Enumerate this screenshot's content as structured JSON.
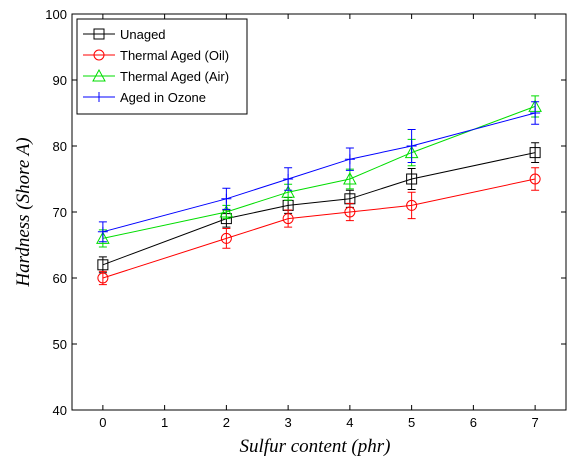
{
  "chart_data": {
    "type": "line",
    "title": "",
    "xlabel": "Sulfur content (phr)",
    "ylabel": "Hardness (Shore A)",
    "xlim": [
      -0.5,
      7.5
    ],
    "ylim": [
      40,
      100
    ],
    "xticks": [
      0,
      1,
      2,
      3,
      4,
      5,
      6,
      7
    ],
    "yticks": [
      40,
      50,
      60,
      70,
      80,
      90,
      100
    ],
    "grid": false,
    "legend_position": "top-left",
    "x": [
      0,
      2,
      3,
      4,
      5,
      7
    ],
    "series": [
      {
        "name": "Unaged",
        "color": "#000000",
        "marker": "square",
        "values": [
          62,
          69,
          71,
          72,
          75,
          79
        ],
        "errors": [
          1.2,
          1.3,
          1.2,
          1.3,
          1.6,
          1.5
        ]
      },
      {
        "name": "Thermal Aged (Oil)",
        "color": "#ff0000",
        "marker": "circle",
        "values": [
          60,
          66,
          69,
          70,
          71,
          75
        ],
        "errors": [
          1.0,
          1.5,
          1.3,
          1.3,
          2.0,
          1.7
        ]
      },
      {
        "name": "Thermal Aged (Air)",
        "color": "#00dd00",
        "marker": "triangle",
        "values": [
          66,
          70,
          73,
          75,
          79,
          86
        ],
        "errors": [
          1.3,
          1.0,
          1.2,
          1.5,
          2.0,
          1.6
        ]
      },
      {
        "name": "Aged in Ozone",
        "color": "#0000ff",
        "marker": "plus",
        "values": [
          67,
          72,
          75,
          78,
          80,
          85
        ],
        "errors": [
          1.5,
          1.6,
          1.7,
          1.7,
          2.5,
          1.7
        ]
      }
    ]
  }
}
